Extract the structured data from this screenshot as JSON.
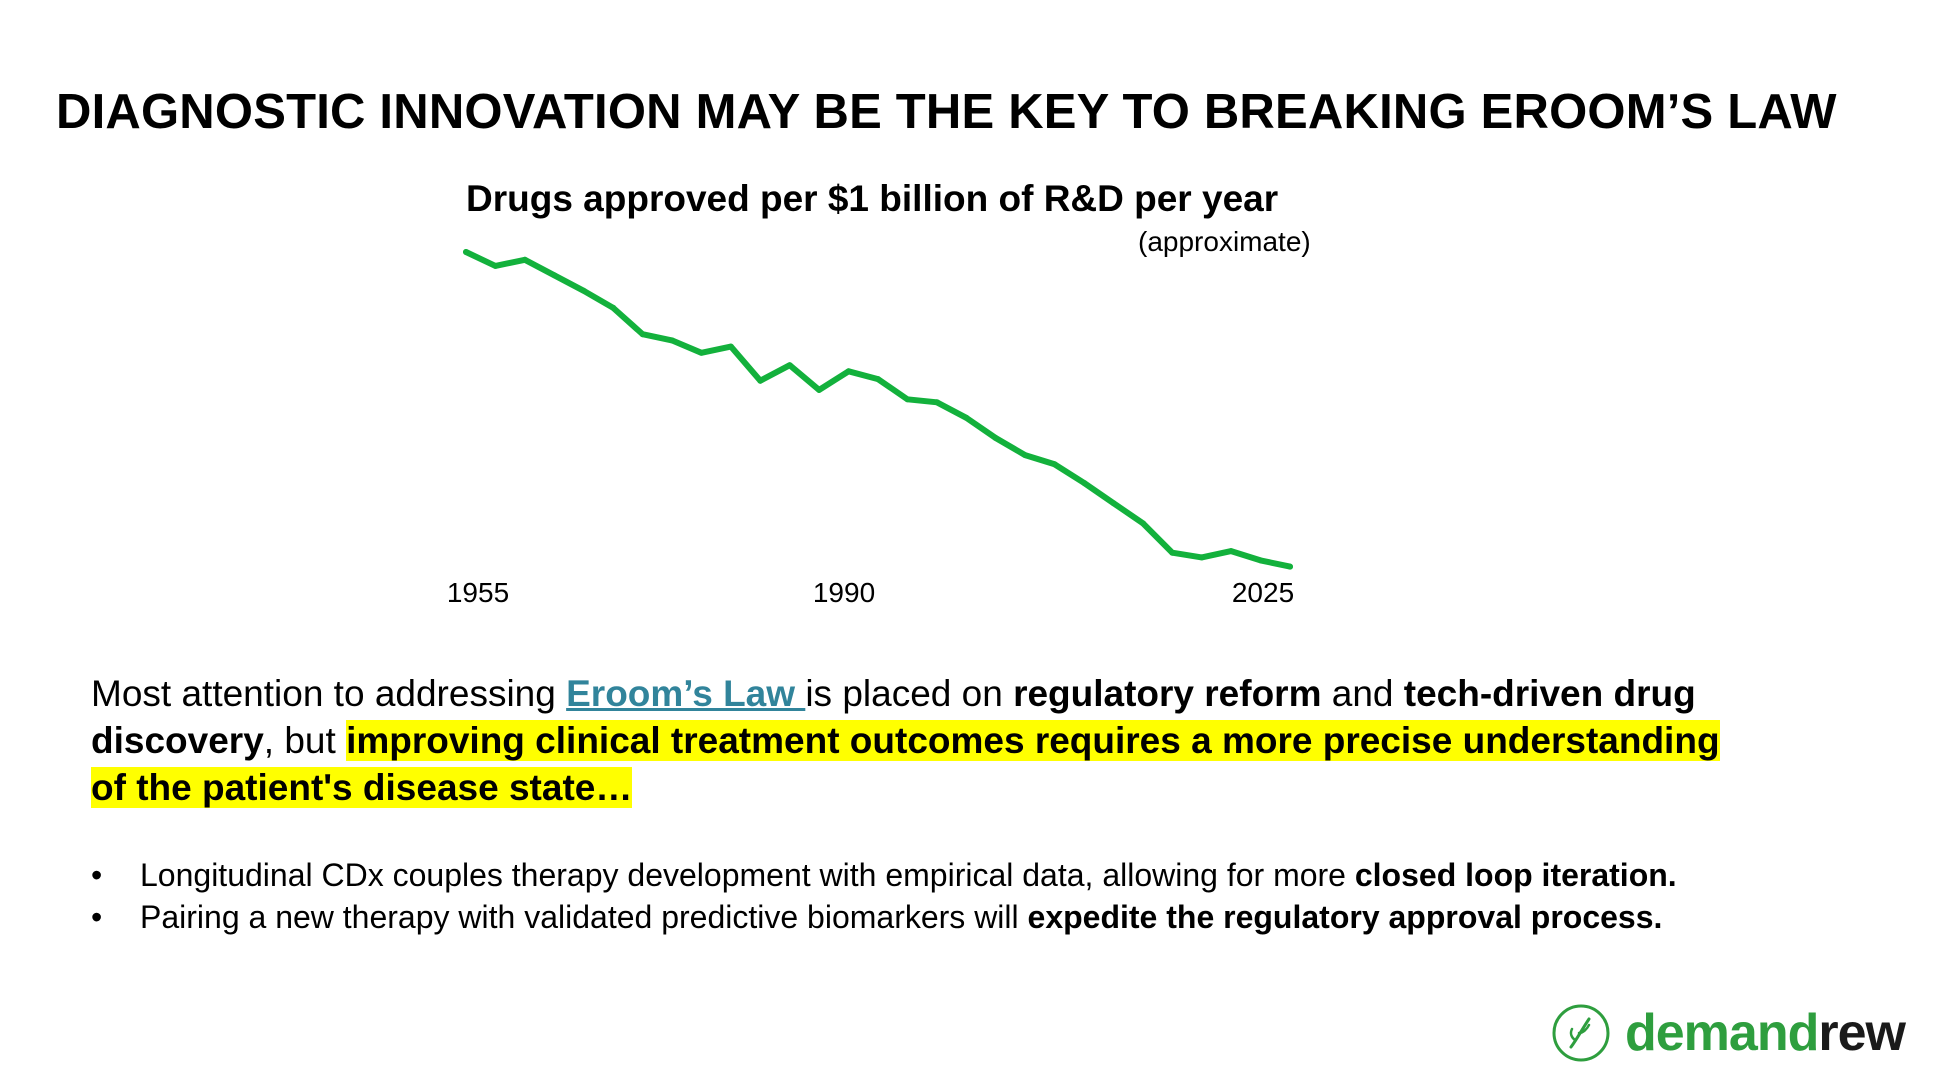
{
  "slide": {
    "title": "DIAGNOSTIC INNOVATION MAY BE THE KEY TO BREAKING EROOM’S LAW"
  },
  "chart_data": {
    "type": "line",
    "title": "Drugs approved per $1 billion of R&D per year",
    "subtitle": "(approximate)",
    "xlabel": "",
    "ylabel": "",
    "x_ticks": [
      "1955",
      "1990",
      "2025"
    ],
    "xlim": [
      1955,
      2025
    ],
    "ylim": [
      0,
      100
    ],
    "grid": false,
    "color": "#13b13c",
    "series": [
      {
        "name": "Drugs approved per $1 billion of R&D",
        "x": [
          1955,
          1957.5,
          1960,
          1962.5,
          1965,
          1967.5,
          1970,
          1972.5,
          1975,
          1977.5,
          1980,
          1982.5,
          1985,
          1987.5,
          1990,
          1992.5,
          1995,
          1997.5,
          2000,
          2002.5,
          2005,
          2007.5,
          2010,
          2012.5,
          2015,
          2017.5,
          2020,
          2022.5,
          2025
        ],
        "y": [
          100,
          95.5,
          97.5,
          92.5,
          87.5,
          82,
          73.5,
          71.5,
          67.5,
          69.5,
          58.5,
          63.5,
          55.5,
          61.5,
          59,
          52.5,
          51.5,
          46.5,
          40,
          34.5,
          31.5,
          25.5,
          19,
          12.5,
          3,
          1.5,
          3.5,
          0.5,
          -1.5
        ]
      }
    ]
  },
  "body": {
    "p1": "Most attention to addressing ",
    "link": "Eroom’s Law ",
    "p2": "is placed on ",
    "b1": "regulatory reform",
    "p3": " and ",
    "b2": "tech-driven drug discovery",
    "p4": ", but ",
    "highlight": "improving clinical treatment outcomes requires a more precise understanding of the patient's disease state…"
  },
  "bullets": {
    "marker": "•",
    "b1_text": "Longitudinal CDx couples therapy development with empirical data, allowing for more ",
    "b1_bold": "closed loop iteration.",
    "b2_text": "Pairing a new therapy with validated predictive biomarkers will ",
    "b2_bold": "expedite the regulatory approval process."
  },
  "logo": {
    "part1": "demand",
    "part2": "rew",
    "icon": "leaf-icon",
    "color": "#2e9e3e"
  }
}
